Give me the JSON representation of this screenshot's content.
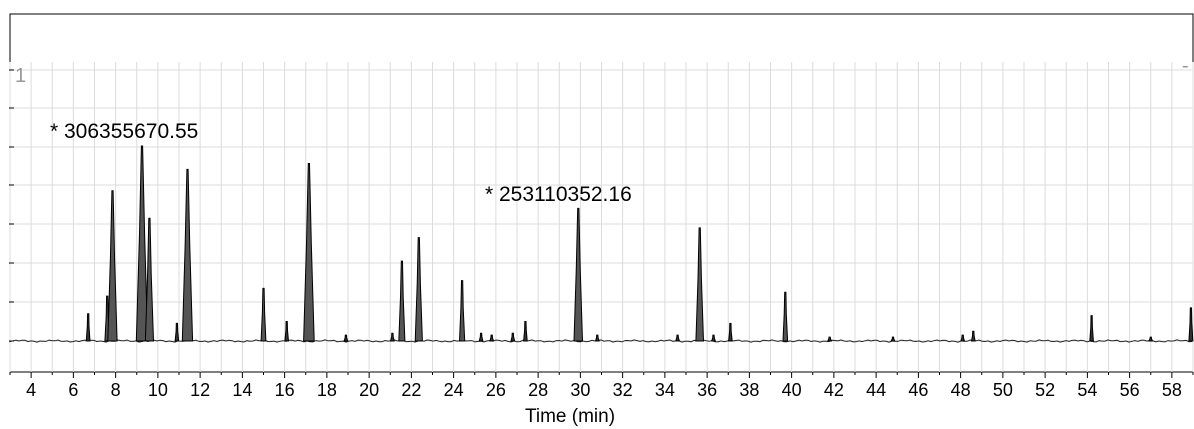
{
  "chart_data": {
    "type": "line",
    "title": "",
    "xlabel": "Time (min)",
    "ylabel": "",
    "xlim": [
      3,
      59
    ],
    "ylim": [
      0,
      1
    ],
    "grid": true,
    "x_ticks": [
      4,
      6,
      8,
      10,
      12,
      14,
      16,
      18,
      20,
      22,
      24,
      26,
      28,
      30,
      32,
      34,
      36,
      38,
      40,
      42,
      44,
      46,
      48,
      50,
      52,
      54,
      56,
      58
    ],
    "y_tick_label": "1",
    "annotations": [
      {
        "text": "* 306355670.55",
        "x": 9.25,
        "y": 1.0
      },
      {
        "text": "* 253110352.16",
        "x": 29.9,
        "y": 0.68
      }
    ],
    "peaks": [
      {
        "rt": 6.7,
        "height": 0.14
      },
      {
        "rt": 7.6,
        "height": 0.23
      },
      {
        "rt": 7.85,
        "height": 0.77
      },
      {
        "rt": 9.25,
        "height": 1.0
      },
      {
        "rt": 9.6,
        "height": 0.63
      },
      {
        "rt": 10.9,
        "height": 0.09
      },
      {
        "rt": 11.4,
        "height": 0.88
      },
      {
        "rt": 15.0,
        "height": 0.27
      },
      {
        "rt": 16.1,
        "height": 0.1
      },
      {
        "rt": 17.15,
        "height": 0.91
      },
      {
        "rt": 18.9,
        "height": 0.03
      },
      {
        "rt": 21.1,
        "height": 0.04
      },
      {
        "rt": 21.55,
        "height": 0.41
      },
      {
        "rt": 22.35,
        "height": 0.53
      },
      {
        "rt": 24.4,
        "height": 0.31
      },
      {
        "rt": 25.3,
        "height": 0.04
      },
      {
        "rt": 25.8,
        "height": 0.03
      },
      {
        "rt": 26.8,
        "height": 0.04
      },
      {
        "rt": 27.4,
        "height": 0.1
      },
      {
        "rt": 29.9,
        "height": 0.68
      },
      {
        "rt": 30.8,
        "height": 0.03
      },
      {
        "rt": 34.6,
        "height": 0.03
      },
      {
        "rt": 35.65,
        "height": 0.58
      },
      {
        "rt": 36.3,
        "height": 0.03
      },
      {
        "rt": 37.1,
        "height": 0.09
      },
      {
        "rt": 39.7,
        "height": 0.25
      },
      {
        "rt": 41.8,
        "height": 0.02
      },
      {
        "rt": 44.8,
        "height": 0.02
      },
      {
        "rt": 48.1,
        "height": 0.03
      },
      {
        "rt": 48.6,
        "height": 0.05
      },
      {
        "rt": 54.2,
        "height": 0.13
      },
      {
        "rt": 57.0,
        "height": 0.02
      },
      {
        "rt": 58.9,
        "height": 0.17
      }
    ]
  }
}
